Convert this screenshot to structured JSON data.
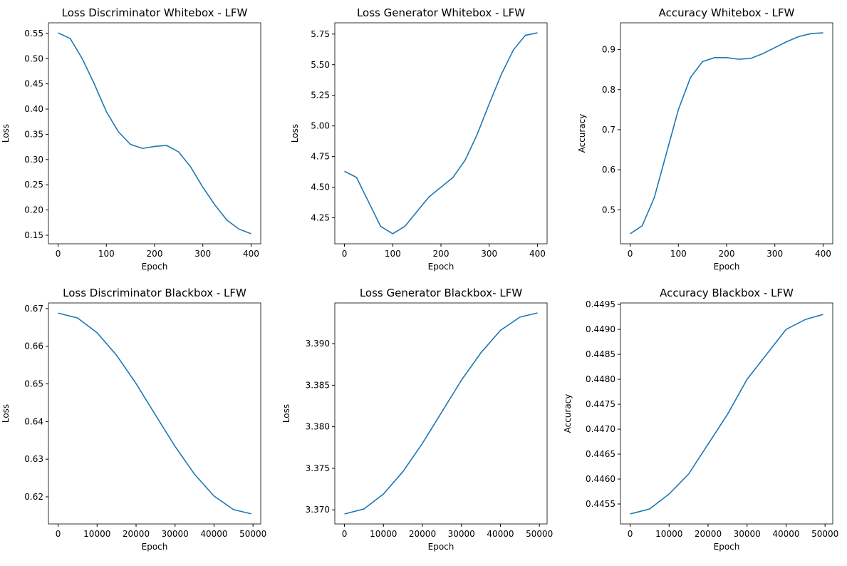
{
  "chart_data": [
    {
      "type": "line",
      "title": "Loss Discriminator Whitebox - LFW",
      "xlabel": "Epoch",
      "ylabel": "Loss",
      "x": [
        0,
        25,
        50,
        75,
        100,
        125,
        150,
        175,
        200,
        225,
        250,
        275,
        300,
        325,
        350,
        375,
        400
      ],
      "series": [
        {
          "color": "#1f77b4",
          "values": [
            0.551,
            0.54,
            0.5,
            0.45,
            0.395,
            0.355,
            0.33,
            0.322,
            0.326,
            0.328,
            0.315,
            0.285,
            0.245,
            0.21,
            0.18,
            0.162,
            0.153
          ]
        }
      ],
      "xlim": [
        -20,
        420
      ],
      "xticks": [
        0,
        100,
        200,
        300,
        400
      ],
      "ylim": [
        0.133,
        0.571
      ],
      "yticks": [
        0.15,
        {
          "value": 0.2,
          "label": "0.20"
        },
        0.25,
        {
          "value": 0.3,
          "label": "0.30"
        },
        0.35,
        {
          "value": 0.4,
          "label": "0.40"
        },
        0.45,
        {
          "value": 0.5,
          "label": "0.50"
        },
        0.55
      ]
    },
    {
      "type": "line",
      "title": "Loss Generator Whitebox - LFW",
      "xlabel": "Epoch",
      "ylabel": "Loss",
      "x": [
        0,
        25,
        50,
        75,
        100,
        125,
        150,
        175,
        200,
        225,
        250,
        275,
        300,
        325,
        350,
        375,
        400
      ],
      "series": [
        {
          "color": "#1f77b4",
          "values": [
            4.63,
            4.58,
            4.38,
            4.18,
            4.12,
            4.18,
            4.3,
            4.42,
            4.5,
            4.58,
            4.72,
            4.93,
            5.18,
            5.42,
            5.62,
            5.74,
            5.76
          ]
        }
      ],
      "xlim": [
        -20,
        420
      ],
      "xticks": [
        0,
        100,
        200,
        300,
        400
      ],
      "ylim": [
        4.038,
        5.842
      ],
      "yticks": [
        4.25,
        {
          "value": 4.5,
          "label": "4.50"
        },
        4.75,
        {
          "value": 5,
          "label": "5.00"
        },
        5.25,
        {
          "value": 5.5,
          "label": "5.50"
        },
        5.75
      ]
    },
    {
      "type": "line",
      "title": "Accuracy Whitebox - LFW",
      "xlabel": "Epoch",
      "ylabel": "Accuracy",
      "x": [
        0,
        25,
        50,
        75,
        100,
        125,
        150,
        175,
        200,
        225,
        250,
        275,
        300,
        325,
        350,
        375,
        400
      ],
      "series": [
        {
          "color": "#1f77b4",
          "values": [
            0.44,
            0.46,
            0.53,
            0.64,
            0.75,
            0.83,
            0.87,
            0.88,
            0.88,
            0.876,
            0.878,
            0.89,
            0.905,
            0.92,
            0.933,
            0.94,
            0.942
          ]
        }
      ],
      "xlim": [
        -20,
        420
      ],
      "xticks": [
        0,
        100,
        200,
        300,
        400
      ],
      "ylim": [
        0.415,
        0.967
      ],
      "yticks": [
        0.5,
        0.6,
        0.7,
        0.8,
        0.9
      ]
    },
    {
      "type": "line",
      "title": "Loss Discriminator Blackbox - LFW",
      "xlabel": "Epoch",
      "ylabel": "Loss",
      "x": [
        0,
        5000,
        10000,
        15000,
        20000,
        25000,
        30000,
        35000,
        40000,
        45000,
        49500
      ],
      "series": [
        {
          "color": "#1f77b4",
          "values": [
            0.6688,
            0.6675,
            0.6636,
            0.6576,
            0.6501,
            0.6417,
            0.6334,
            0.626,
            0.6202,
            0.6166,
            0.6155
          ]
        }
      ],
      "xlim": [
        -2475,
        51975
      ],
      "xticks": [
        0,
        10000,
        20000,
        30000,
        40000,
        50000
      ],
      "ylim": [
        0.6128,
        0.6715
      ],
      "yticks": [
        0.62,
        0.63,
        0.64,
        0.65,
        0.66,
        0.67
      ]
    },
    {
      "type": "line",
      "title": "Loss Generator Blackbox- LFW",
      "xlabel": "Epoch",
      "ylabel": "Loss",
      "x": [
        0,
        5000,
        10000,
        15000,
        20000,
        25000,
        30000,
        35000,
        40000,
        45000,
        49500
      ],
      "series": [
        {
          "color": "#1f77b4",
          "values": [
            3.3695,
            3.3701,
            3.3719,
            3.3746,
            3.378,
            3.3818,
            3.3856,
            3.3889,
            3.3916,
            3.3932,
            3.3937
          ]
        }
      ],
      "xlim": [
        -2475,
        51975
      ],
      "xticks": [
        0,
        10000,
        20000,
        30000,
        40000,
        50000
      ],
      "ylim": [
        3.3683,
        3.3949
      ],
      "yticks": [
        {
          "value": 3.37,
          "label": "3.370"
        },
        3.375,
        {
          "value": 3.38,
          "label": "3.380"
        },
        3.385,
        {
          "value": 3.39,
          "label": "3.390"
        }
      ]
    },
    {
      "type": "line",
      "title": "Accuracy Blackbox - LFW",
      "xlabel": "Epoch",
      "ylabel": "Accuracy",
      "x": [
        0,
        5000,
        10000,
        15000,
        20000,
        25000,
        30000,
        35000,
        40000,
        45000,
        49500
      ],
      "series": [
        {
          "color": "#1f77b4",
          "values": [
            0.4453,
            0.4454,
            0.4457,
            0.4461,
            0.4467,
            0.4473,
            0.448,
            0.4485,
            0.449,
            0.4492,
            0.4493
          ]
        }
      ],
      "xlim": [
        -2475,
        51975
      ],
      "xticks": [
        0,
        10000,
        20000,
        30000,
        40000,
        50000
      ],
      "ylim": [
        0.4451,
        0.44953
      ],
      "yticks": [
        0.4455,
        {
          "value": 0.446,
          "label": "0.4460"
        },
        0.4465,
        {
          "value": 0.447,
          "label": "0.4470"
        },
        0.4475,
        {
          "value": 0.448,
          "label": "0.4480"
        },
        0.4485,
        {
          "value": 0.449,
          "label": "0.4490"
        },
        0.4495
      ]
    }
  ]
}
